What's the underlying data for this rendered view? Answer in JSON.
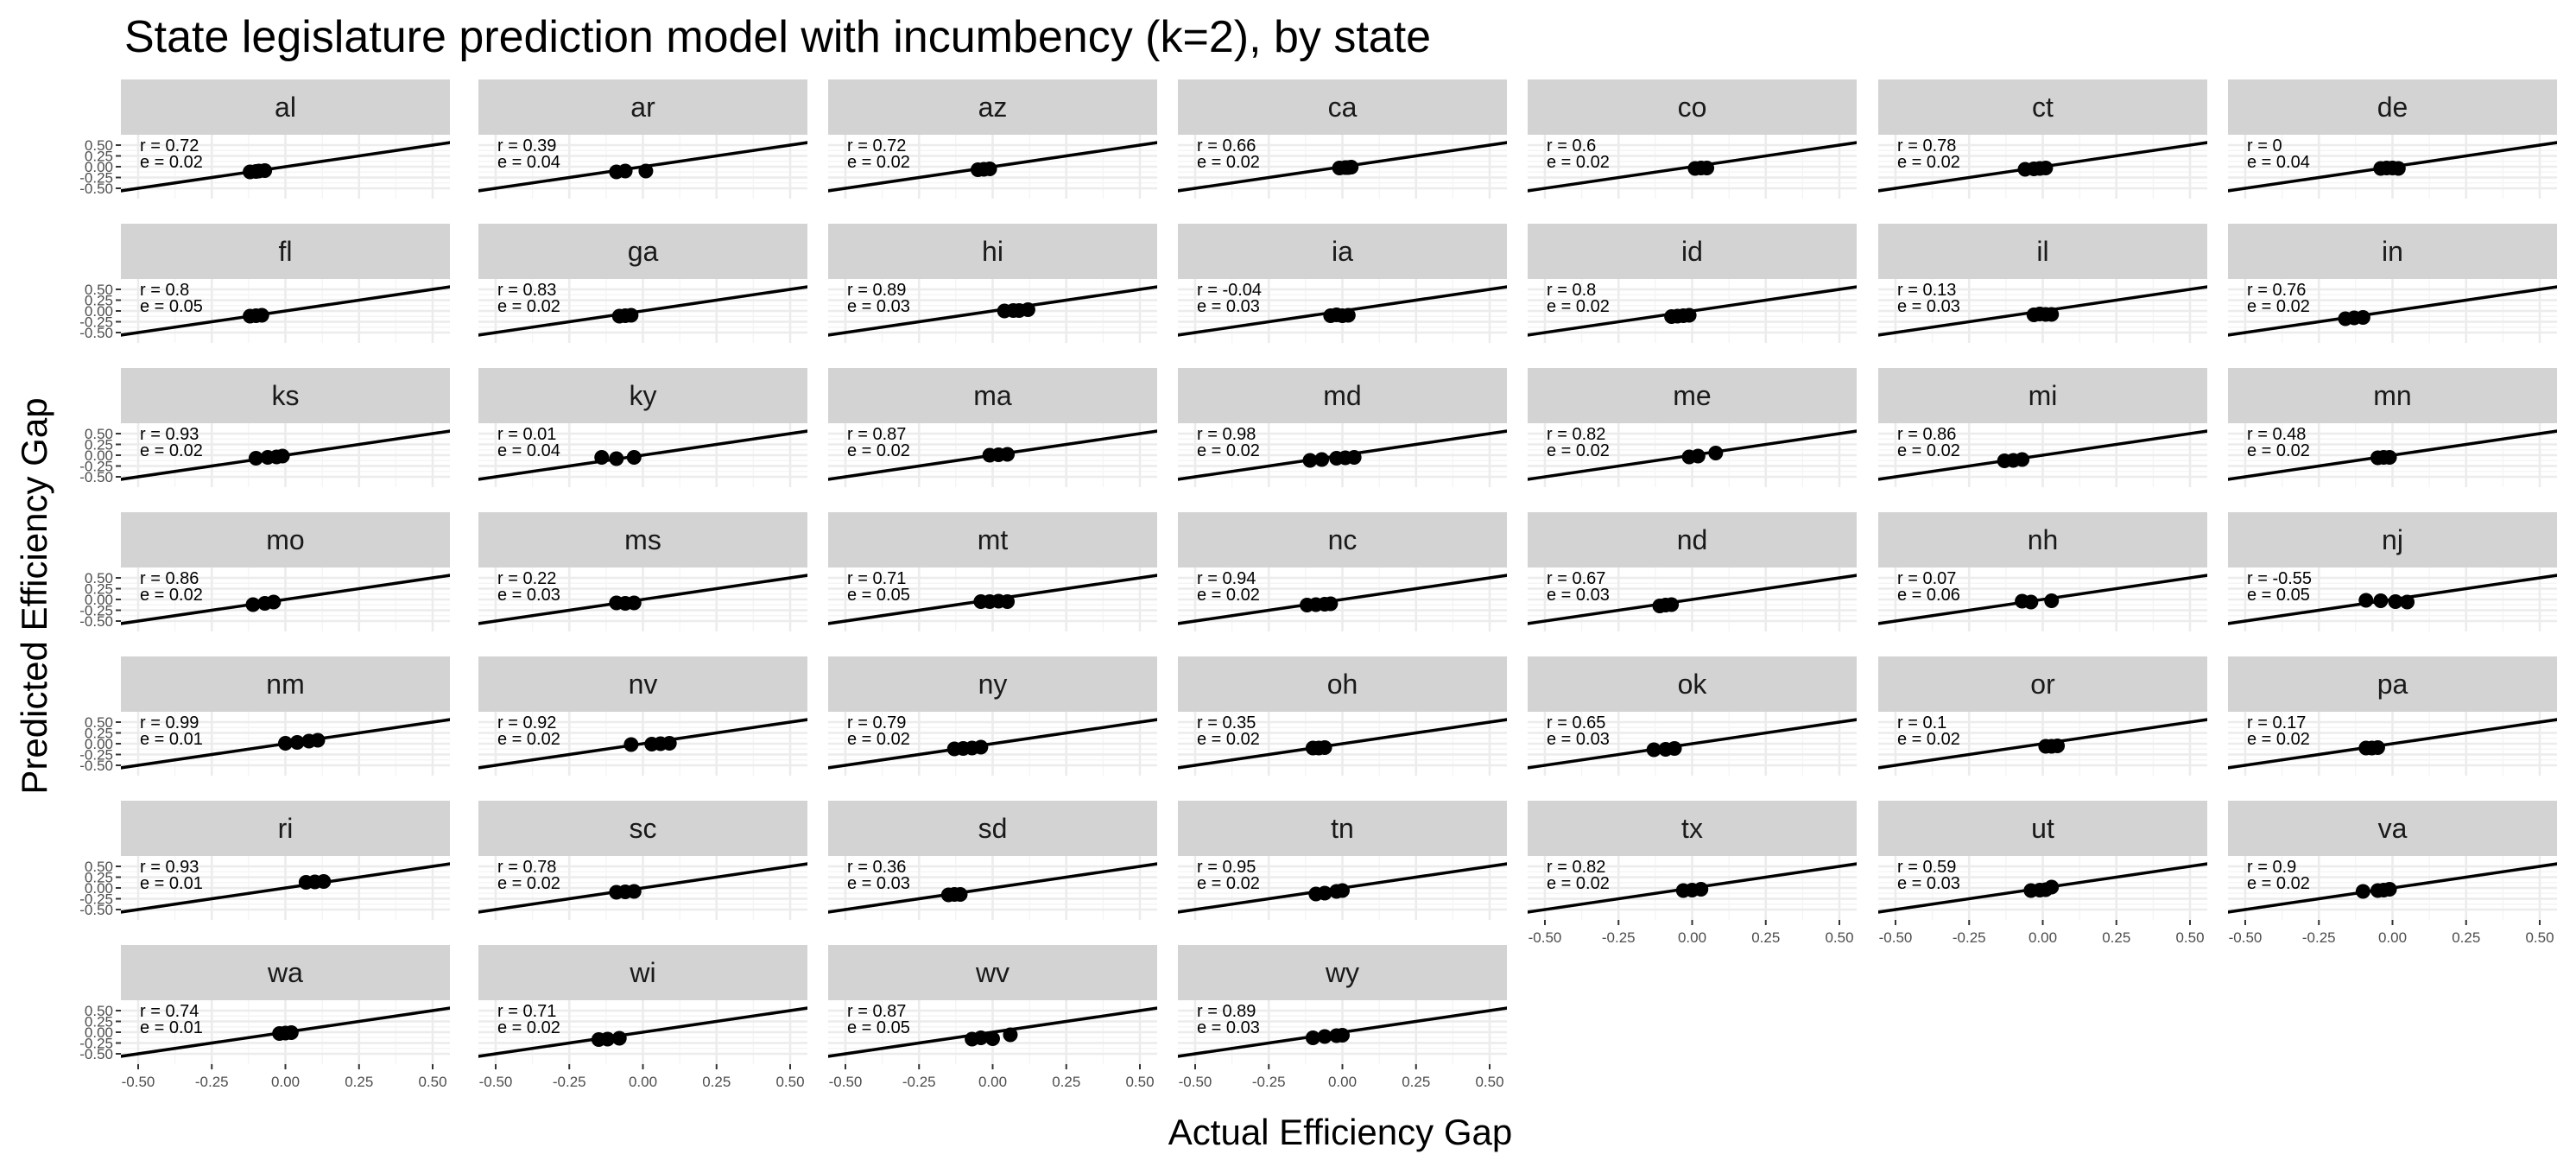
{
  "chart_data": {
    "type": "scatter",
    "title": "State legislature prediction model with incumbency (k=2), by state",
    "xlabel": "Actual Efficiency Gap",
    "ylabel": "Predicted Efficiency Gap",
    "xlim": [
      -0.5,
      0.5
    ],
    "ylim": [
      -0.5,
      0.5
    ],
    "x_ticks": [
      -0.5,
      -0.25,
      0.0,
      0.25,
      0.5
    ],
    "x_tick_labels": [
      "-0.50",
      "-0.25",
      "0.00",
      "0.25",
      "0.50"
    ],
    "y_ticks": [
      -0.5,
      -0.25,
      0.0,
      0.25,
      0.5
    ],
    "y_tick_labels": [
      "-0.50",
      "-0.25",
      "0.00",
      "0.25",
      "0.50"
    ],
    "grid": true,
    "reference_line": "y = x",
    "facet_columns": 7,
    "panels": [
      {
        "state": "al",
        "r": "r = 0.72",
        "e": "e = 0.02",
        "x": [
          -0.12,
          -0.1,
          -0.09,
          -0.07
        ],
        "y": [
          -0.12,
          -0.11,
          -0.1,
          -0.09
        ]
      },
      {
        "state": "ar",
        "r": "r = 0.39",
        "e": "e = 0.04",
        "x": [
          -0.09,
          -0.06,
          0.01
        ],
        "y": [
          -0.12,
          -0.1,
          -0.1
        ]
      },
      {
        "state": "az",
        "r": "r = 0.72",
        "e": "e = 0.02",
        "x": [
          -0.05,
          -0.03,
          -0.01
        ],
        "y": [
          -0.07,
          -0.06,
          -0.05
        ]
      },
      {
        "state": "ca",
        "r": "r = 0.66",
        "e": "e = 0.02",
        "x": [
          -0.01,
          0.01,
          0.02,
          0.03
        ],
        "y": [
          -0.03,
          -0.02,
          -0.02,
          -0.01
        ]
      },
      {
        "state": "co",
        "r": "r = 0.6",
        "e": "e = 0.02",
        "x": [
          0.01,
          0.03,
          0.05
        ],
        "y": [
          -0.04,
          -0.03,
          -0.03
        ]
      },
      {
        "state": "ct",
        "r": "r = 0.78",
        "e": "e = 0.02",
        "x": [
          -0.06,
          -0.03,
          -0.01,
          0.01
        ],
        "y": [
          -0.06,
          -0.05,
          -0.04,
          -0.03
        ]
      },
      {
        "state": "de",
        "r": "r = 0",
        "e": "e = 0.04",
        "x": [
          -0.04,
          -0.02,
          0.0,
          0.02
        ],
        "y": [
          -0.04,
          -0.03,
          -0.03,
          -0.04
        ]
      },
      {
        "state": "fl",
        "r": "r = 0.8",
        "e": "e = 0.05",
        "x": [
          -0.12,
          -0.1,
          -0.08
        ],
        "y": [
          -0.12,
          -0.11,
          -0.1
        ]
      },
      {
        "state": "ga",
        "r": "r = 0.83",
        "e": "e = 0.02",
        "x": [
          -0.08,
          -0.06,
          -0.04
        ],
        "y": [
          -0.12,
          -0.11,
          -0.1
        ]
      },
      {
        "state": "hi",
        "r": "r = 0.89",
        "e": "e = 0.03",
        "x": [
          0.04,
          0.07,
          0.09,
          0.12
        ],
        "y": [
          0.0,
          0.01,
          0.01,
          0.03
        ]
      },
      {
        "state": "ia",
        "r": "r = -0.04",
        "e": "e = 0.03",
        "x": [
          -0.04,
          -0.02,
          0.0,
          0.02
        ],
        "y": [
          -0.11,
          -0.09,
          -0.11,
          -0.1
        ]
      },
      {
        "state": "id",
        "r": "r = 0.8",
        "e": "e = 0.02",
        "x": [
          -0.07,
          -0.05,
          -0.03,
          -0.01
        ],
        "y": [
          -0.13,
          -0.12,
          -0.11,
          -0.1
        ]
      },
      {
        "state": "il",
        "r": "r = 0.13",
        "e": "e = 0.03",
        "x": [
          -0.03,
          -0.01,
          0.01,
          0.03
        ],
        "y": [
          -0.09,
          -0.07,
          -0.08,
          -0.08
        ]
      },
      {
        "state": "in",
        "r": "r = 0.76",
        "e": "e = 0.02",
        "x": [
          -0.16,
          -0.13,
          -0.1
        ],
        "y": [
          -0.18,
          -0.16,
          -0.15
        ]
      },
      {
        "state": "ks",
        "r": "r = 0.93",
        "e": "e = 0.02",
        "x": [
          -0.1,
          -0.06,
          -0.03,
          -0.01
        ],
        "y": [
          -0.07,
          -0.05,
          -0.04,
          -0.02
        ]
      },
      {
        "state": "ky",
        "r": "r = 0.01",
        "e": "e = 0.04",
        "x": [
          -0.14,
          -0.09,
          -0.03
        ],
        "y": [
          -0.05,
          -0.08,
          -0.05
        ]
      },
      {
        "state": "ma",
        "r": "r = 0.87",
        "e": "e = 0.02",
        "x": [
          -0.01,
          0.02,
          0.05
        ],
        "y": [
          0.0,
          0.01,
          0.02
        ]
      },
      {
        "state": "md",
        "r": "r = 0.98",
        "e": "e = 0.02",
        "x": [
          -0.11,
          -0.07,
          -0.02,
          0.01,
          0.04
        ],
        "y": [
          -0.12,
          -0.1,
          -0.07,
          -0.06,
          -0.05
        ]
      },
      {
        "state": "me",
        "r": "r = 0.82",
        "e": "e = 0.02",
        "x": [
          -0.01,
          0.02,
          0.08
        ],
        "y": [
          -0.04,
          -0.02,
          0.05
        ]
      },
      {
        "state": "mi",
        "r": "r = 0.86",
        "e": "e = 0.02",
        "x": [
          -0.13,
          -0.1,
          -0.07
        ],
        "y": [
          -0.13,
          -0.12,
          -0.1
        ]
      },
      {
        "state": "mn",
        "r": "r = 0.48",
        "e": "e = 0.02",
        "x": [
          -0.05,
          -0.03,
          -0.01
        ],
        "y": [
          -0.06,
          -0.05,
          -0.05
        ]
      },
      {
        "state": "mo",
        "r": "r = 0.86",
        "e": "e = 0.02",
        "x": [
          -0.11,
          -0.07,
          -0.04
        ],
        "y": [
          -0.12,
          -0.09,
          -0.06
        ]
      },
      {
        "state": "ms",
        "r": "r = 0.22",
        "e": "e = 0.03",
        "x": [
          -0.09,
          -0.06,
          -0.03
        ],
        "y": [
          -0.08,
          -0.09,
          -0.08
        ]
      },
      {
        "state": "mt",
        "r": "r = 0.71",
        "e": "e = 0.05",
        "x": [
          -0.04,
          -0.01,
          0.02,
          0.05
        ],
        "y": [
          -0.05,
          -0.05,
          -0.04,
          -0.05
        ]
      },
      {
        "state": "nc",
        "r": "r = 0.94",
        "e": "e = 0.02",
        "x": [
          -0.12,
          -0.09,
          -0.06,
          -0.04
        ],
        "y": [
          -0.13,
          -0.12,
          -0.11,
          -0.1
        ]
      },
      {
        "state": "nd",
        "r": "r = 0.67",
        "e": "e = 0.03",
        "x": [
          -0.11,
          -0.09,
          -0.07
        ],
        "y": [
          -0.15,
          -0.13,
          -0.12
        ]
      },
      {
        "state": "nh",
        "r": "r = 0.07",
        "e": "e = 0.06",
        "x": [
          -0.07,
          -0.04,
          0.03
        ],
        "y": [
          -0.04,
          -0.06,
          -0.03
        ]
      },
      {
        "state": "nj",
        "r": "r = -0.55",
        "e": "e = 0.05",
        "x": [
          -0.09,
          -0.04,
          0.01,
          0.05
        ],
        "y": [
          -0.02,
          -0.03,
          -0.05,
          -0.06
        ]
      },
      {
        "state": "nm",
        "r": "r = 0.99",
        "e": "e = 0.01",
        "x": [
          0.0,
          0.04,
          0.08,
          0.11
        ],
        "y": [
          0.01,
          0.03,
          0.06,
          0.08
        ]
      },
      {
        "state": "nv",
        "r": "r = 0.92",
        "e": "e = 0.02",
        "x": [
          -0.04,
          0.03,
          0.06,
          0.09
        ],
        "y": [
          -0.02,
          -0.01,
          0.0,
          0.01
        ]
      },
      {
        "state": "ny",
        "r": "r = 0.79",
        "e": "e = 0.02",
        "x": [
          -0.13,
          -0.1,
          -0.07,
          -0.04
        ],
        "y": [
          -0.12,
          -0.11,
          -0.1,
          -0.08
        ]
      },
      {
        "state": "oh",
        "r": "r = 0.35",
        "e": "e = 0.02",
        "x": [
          -0.1,
          -0.08,
          -0.06
        ],
        "y": [
          -0.1,
          -0.1,
          -0.09
        ]
      },
      {
        "state": "ok",
        "r": "r = 0.65",
        "e": "e = 0.03",
        "x": [
          -0.13,
          -0.09,
          -0.06
        ],
        "y": [
          -0.14,
          -0.13,
          -0.11
        ]
      },
      {
        "state": "or",
        "r": "r = 0.1",
        "e": "e = 0.02",
        "x": [
          0.01,
          0.03,
          0.05
        ],
        "y": [
          -0.06,
          -0.06,
          -0.05
        ]
      },
      {
        "state": "pa",
        "r": "r = 0.17",
        "e": "e = 0.02",
        "x": [
          -0.09,
          -0.07,
          -0.05
        ],
        "y": [
          -0.1,
          -0.1,
          -0.09
        ]
      },
      {
        "state": "ri",
        "r": "r = 0.93",
        "e": "e = 0.01",
        "x": [
          0.07,
          0.1,
          0.13
        ],
        "y": [
          0.13,
          0.14,
          0.15
        ]
      },
      {
        "state": "sc",
        "r": "r = 0.78",
        "e": "e = 0.02",
        "x": [
          -0.09,
          -0.06,
          -0.03
        ],
        "y": [
          -0.1,
          -0.09,
          -0.08
        ]
      },
      {
        "state": "sd",
        "r": "r = 0.36",
        "e": "e = 0.03",
        "x": [
          -0.15,
          -0.13,
          -0.11
        ],
        "y": [
          -0.16,
          -0.15,
          -0.15
        ]
      },
      {
        "state": "tn",
        "r": "r = 0.95",
        "e": "e = 0.02",
        "x": [
          -0.09,
          -0.06,
          -0.02,
          0.0
        ],
        "y": [
          -0.14,
          -0.12,
          -0.08,
          -0.06
        ]
      },
      {
        "state": "tx",
        "r": "r = 0.82",
        "e": "e = 0.02",
        "x": [
          -0.03,
          0.0,
          0.03
        ],
        "y": [
          -0.06,
          -0.05,
          -0.03
        ]
      },
      {
        "state": "ut",
        "r": "r = 0.59",
        "e": "e = 0.03",
        "x": [
          -0.04,
          -0.01,
          0.01,
          0.03
        ],
        "y": [
          -0.06,
          -0.05,
          -0.04,
          0.02
        ]
      },
      {
        "state": "va",
        "r": "r = 0.9",
        "e": "e = 0.02",
        "x": [
          -0.1,
          -0.05,
          -0.03,
          -0.01
        ],
        "y": [
          -0.08,
          -0.06,
          -0.05,
          -0.03
        ]
      },
      {
        "state": "wa",
        "r": "r = 0.74",
        "e": "e = 0.01",
        "x": [
          -0.02,
          0.0,
          0.02
        ],
        "y": [
          -0.03,
          -0.02,
          -0.01
        ]
      },
      {
        "state": "wi",
        "r": "r = 0.71",
        "e": "e = 0.02",
        "x": [
          -0.15,
          -0.12,
          -0.08
        ],
        "y": [
          -0.17,
          -0.16,
          -0.14
        ]
      },
      {
        "state": "wv",
        "r": "r = 0.87",
        "e": "e = 0.05",
        "x": [
          -0.07,
          -0.04,
          0.0,
          0.06
        ],
        "y": [
          -0.16,
          -0.13,
          -0.15,
          -0.06
        ]
      },
      {
        "state": "wy",
        "r": "r = 0.89",
        "e": "e = 0.03",
        "x": [
          -0.1,
          -0.06,
          -0.02,
          0.0
        ],
        "y": [
          -0.13,
          -0.1,
          -0.08,
          -0.07
        ]
      }
    ]
  }
}
